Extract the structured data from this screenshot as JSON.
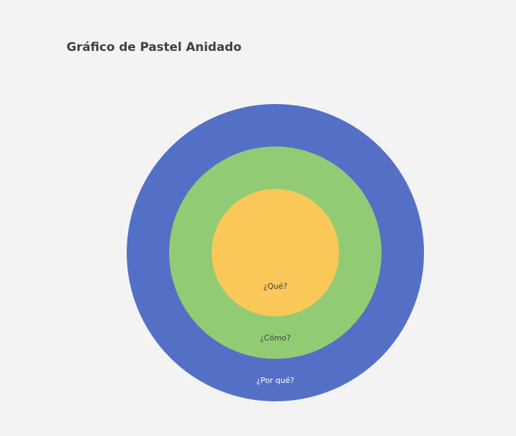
{
  "chart_data": {
    "type": "pie",
    "subtype": "nested",
    "title": "Gráfico de Pastel Anidado",
    "legend": "none",
    "rings": [
      {
        "label": "¿Por qué?",
        "value": 100,
        "color": "#5470c6",
        "label_color": "#ffffff"
      },
      {
        "label": "¿Cómo?",
        "value": 100,
        "color": "#91cc75",
        "label_color": "#404040"
      },
      {
        "label": "¿Qué?",
        "value": 100,
        "color": "#fac858",
        "label_color": "#404040"
      }
    ]
  }
}
